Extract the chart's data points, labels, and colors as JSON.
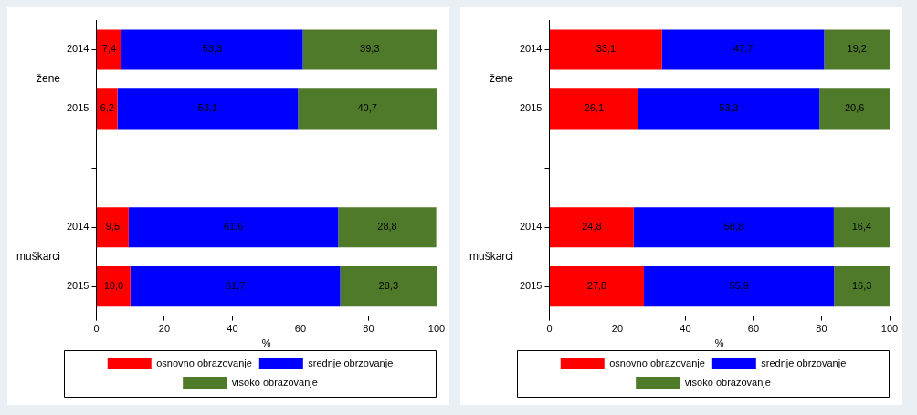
{
  "chart_data": [
    {
      "type": "bar",
      "orientation": "horizontal",
      "stacked": true,
      "categories": [
        "2014",
        "2015",
        null,
        "2014",
        "2015"
      ],
      "annotations": [
        "žene",
        "muškarci"
      ],
      "xlabel": "%",
      "xlim": [
        0,
        100
      ],
      "xticks": [
        0,
        20,
        40,
        60,
        80,
        100
      ],
      "legend": "bottom",
      "data_labels": true,
      "series": [
        {
          "name": "osnovno obrazovanje",
          "color": "#ff0000",
          "values": [
            7.4,
            6.2,
            null,
            9.5,
            10.0
          ],
          "value_labels": [
            "7,4",
            "6,2",
            null,
            "9,5",
            "10,0"
          ]
        },
        {
          "name": "srednje obrzovanje",
          "color": "#0000ff",
          "values": [
            53.3,
            53.1,
            null,
            61.6,
            61.7
          ],
          "value_labels": [
            "53,3",
            "53,1",
            null,
            "61,6",
            "61,7"
          ]
        },
        {
          "name": "visoko obrazovanje",
          "color": "#4e7a2a",
          "values": [
            39.3,
            40.7,
            null,
            28.8,
            28.3
          ],
          "value_labels": [
            "39,3",
            "40,7",
            null,
            "28,8",
            "28,3"
          ]
        }
      ]
    },
    {
      "type": "bar",
      "orientation": "horizontal",
      "stacked": true,
      "categories": [
        "2014",
        "2015",
        null,
        "2014",
        "2015"
      ],
      "annotations": [
        "žene",
        "muškarci"
      ],
      "xlabel": "%",
      "xlim": [
        0,
        100
      ],
      "xticks": [
        0,
        20,
        40,
        60,
        80,
        100
      ],
      "legend": "bottom",
      "data_labels": true,
      "series": [
        {
          "name": "osnovno obrazovanje",
          "color": "#ff0000",
          "values": [
            33.1,
            26.1,
            null,
            24.8,
            27.8
          ],
          "value_labels": [
            "33,1",
            "26,1",
            null,
            "24,8",
            "27,8"
          ]
        },
        {
          "name": "srednje obrzovanje",
          "color": "#0000ff",
          "values": [
            47.7,
            53.3,
            null,
            58.8,
            55.9
          ],
          "value_labels": [
            "47,7",
            "53,3",
            null,
            "58,8",
            "55,9"
          ]
        },
        {
          "name": "visoko obrazovanje",
          "color": "#4e7a2a",
          "values": [
            19.2,
            20.6,
            null,
            16.4,
            16.3
          ],
          "value_labels": [
            "19,2",
            "20,6",
            null,
            "16,4",
            "16,3"
          ]
        }
      ]
    }
  ]
}
